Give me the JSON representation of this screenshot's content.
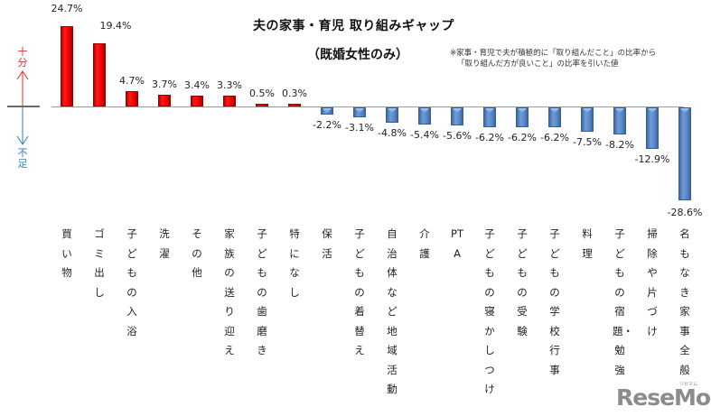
{
  "chart_data": {
    "type": "bar",
    "title": "夫の家事・育児 取り組みギャップ",
    "subtitle": "（既婚女性のみ）",
    "note": [
      "※家事・育児で夫が積極的に「取り組んだこと」の比率から",
      "「取り組んだ方が良いこと」の比率を引いた値"
    ],
    "xlabel": "",
    "ylabel": "",
    "y_indicator": {
      "up_label": "十分",
      "down_label": "不足",
      "up_color": "#e03030",
      "down_color": "#2f7fb5"
    },
    "ylim": [
      -28.6,
      24.7
    ],
    "grid": false,
    "legend": null,
    "unit": "%",
    "categories": [
      "買い物",
      "ゴミ出し",
      "子どもの入浴",
      "洗濯",
      "その他",
      "家族の送り迎え",
      "子どもの歯磨き",
      "特になし",
      "保活",
      "子どもの着替え",
      "自治体など地域活動",
      "介護",
      "PTA",
      "子どもの寝かしつけ",
      "子どもの受験",
      "子どもの学校行事",
      "料理",
      "子どもの宿題・勉強",
      "掃除や片づけ",
      "名もなき家事全般"
    ],
    "values": [
      24.7,
      19.4,
      4.7,
      3.7,
      3.4,
      3.3,
      0.5,
      0.3,
      -2.2,
      -3.1,
      -4.8,
      -5.4,
      -5.6,
      -6.2,
      -6.2,
      -6.2,
      -7.5,
      -8.2,
      -12.9,
      -28.6
    ],
    "value_labels": [
      "24.7%",
      "19.4%",
      "4.7%",
      "3.7%",
      "3.4%",
      "3.3%",
      "0.5%",
      "0.3%",
      "-2.2%",
      "-3.1%",
      "-4.8%",
      "-5.4%",
      "-5.6%",
      "-6.2%",
      "-6.2%",
      "-6.2%",
      "-7.5%",
      "-8.2%",
      "-12.9%",
      "-28.6%"
    ],
    "colors": {
      "positive": "#ee1111",
      "negative": "#4f81bd"
    }
  },
  "watermark": {
    "text": "ReseMom",
    "dot": ".",
    "kana": "リセマム"
  }
}
